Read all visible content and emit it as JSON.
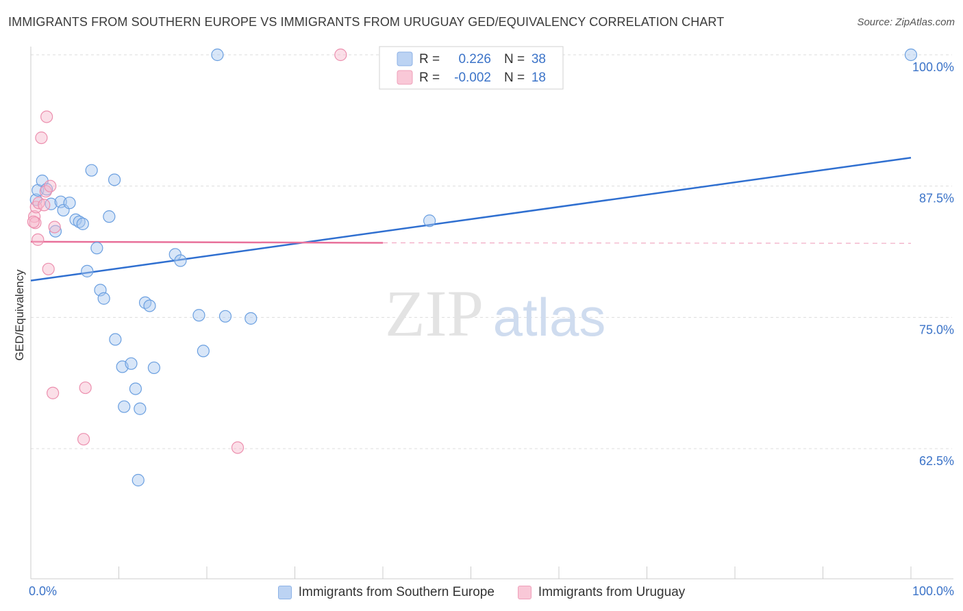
{
  "title": "IMMIGRANTS FROM SOUTHERN EUROPE VS IMMIGRANTS FROM URUGUAY GED/EQUIVALENCY CORRELATION CHART",
  "source": "Source: ZipAtlas.com",
  "watermark": {
    "zip": "ZIP",
    "atlas": "atlas"
  },
  "colors": {
    "blue_fill": "#a9c7f0",
    "blue_stroke": "#6a9fe0",
    "blue_line": "#2f6fd0",
    "pink_fill": "#f6b8cb",
    "pink_stroke": "#ec8fae",
    "pink_line": "#e8709a",
    "axis_text": "#3b73c8",
    "grid": "#dcdcdc"
  },
  "chart_data": {
    "type": "scatter",
    "title": "IMMIGRANTS FROM SOUTHERN EUROPE VS IMMIGRANTS FROM URUGUAY GED/EQUIVALENCY CORRELATION CHART",
    "xlabel": "",
    "ylabel": "GED/Equivalency",
    "xlim": [
      0,
      100
    ],
    "ylim": [
      52,
      102
    ],
    "x_tick_labels": [
      "0.0%",
      "100.0%"
    ],
    "y_ticks": [
      {
        "value": 100,
        "label": "100.0%"
      },
      {
        "value": 87.5,
        "label": "87.5%"
      },
      {
        "value": 75,
        "label": "75.0%"
      },
      {
        "value": 62.5,
        "label": "62.5%"
      }
    ],
    "grid": true,
    "legend_stats": [
      {
        "r_label": "R =",
        "r_value": "0.226",
        "n_label": "N =",
        "n_value": "38"
      },
      {
        "r_label": "R =",
        "r_value": "-0.002",
        "n_label": "N =",
        "n_value": "18"
      }
    ],
    "series": [
      {
        "name": "Immigrants from Southern Europe",
        "color": "blue",
        "trend": {
          "x0": 0,
          "y0": 78.5,
          "x1": 100,
          "y1": 90.2
        },
        "points": [
          [
            0.6,
            86.2
          ],
          [
            0.8,
            87.1
          ],
          [
            1.3,
            88.0
          ],
          [
            1.8,
            87.2
          ],
          [
            2.3,
            85.8
          ],
          [
            2.8,
            83.2
          ],
          [
            3.4,
            86.0
          ],
          [
            3.7,
            85.2
          ],
          [
            4.4,
            85.9
          ],
          [
            5.1,
            84.3
          ],
          [
            5.5,
            84.1
          ],
          [
            5.9,
            83.9
          ],
          [
            6.4,
            79.4
          ],
          [
            6.9,
            89.0
          ],
          [
            7.5,
            81.6
          ],
          [
            7.9,
            77.6
          ],
          [
            8.3,
            76.8
          ],
          [
            8.9,
            84.6
          ],
          [
            9.5,
            88.1
          ],
          [
            9.6,
            72.9
          ],
          [
            10.4,
            70.3
          ],
          [
            10.6,
            66.5
          ],
          [
            11.4,
            70.6
          ],
          [
            11.9,
            68.2
          ],
          [
            12.4,
            66.3
          ],
          [
            13.0,
            76.4
          ],
          [
            13.5,
            76.1
          ],
          [
            14.0,
            70.2
          ],
          [
            12.2,
            59.5
          ],
          [
            16.4,
            81.0
          ],
          [
            17.0,
            80.4
          ],
          [
            19.1,
            75.2
          ],
          [
            19.6,
            71.8
          ],
          [
            22.1,
            75.1
          ],
          [
            25.0,
            74.9
          ],
          [
            21.2,
            100.0
          ],
          [
            45.3,
            84.2
          ],
          [
            100.0,
            100.0
          ]
        ]
      },
      {
        "name": "Immigrants from Uruguay",
        "color": "pink",
        "trend": {
          "x0": 0,
          "y0": 82.2,
          "x1": 40,
          "y1": 82.1,
          "x2": 100,
          "y2": 82.05
        },
        "points": [
          [
            0.4,
            84.6
          ],
          [
            0.5,
            84.0
          ],
          [
            0.6,
            85.5
          ],
          [
            0.9,
            85.9
          ],
          [
            1.2,
            92.1
          ],
          [
            1.7,
            87.0
          ],
          [
            1.8,
            94.1
          ],
          [
            2.2,
            87.5
          ],
          [
            2.7,
            83.6
          ],
          [
            0.8,
            82.4
          ],
          [
            2.0,
            79.6
          ],
          [
            2.5,
            67.8
          ],
          [
            6.2,
            68.3
          ],
          [
            6.0,
            63.4
          ],
          [
            23.5,
            62.6
          ],
          [
            35.2,
            100.0
          ],
          [
            0.3,
            84.1
          ],
          [
            1.5,
            85.7
          ]
        ]
      }
    ]
  }
}
